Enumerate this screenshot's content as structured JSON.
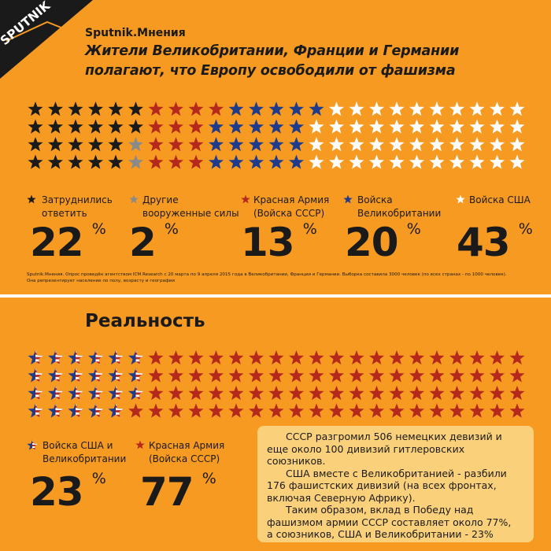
{
  "brand": "Sputnik.Мнения",
  "logo_text": "SPUTNIK",
  "title": "Жители Великобритании, Франции и Германии\nполагают, что Европу освободили от фашизма",
  "survey": {
    "legend": [
      {
        "label": "Затруднились\nответить",
        "value": "22",
        "unit": "%",
        "color": "#1a1a1a"
      },
      {
        "label": "Другие\nвооруженные силы",
        "value": "2",
        "unit": "%",
        "color": "#8a8a8a"
      },
      {
        "label": "Красная Армия\n(Войска СССР)",
        "value": "13",
        "unit": "%",
        "color": "#b5291d"
      },
      {
        "label": "Войска\nВеликобритании",
        "value": "20",
        "unit": "%",
        "color": "#1f3b8c"
      },
      {
        "label": "Войска США",
        "value": "43",
        "unit": "%",
        "color": "#ffffff"
      }
    ],
    "footnote": "Sputnik.Мнения. Опрос проведён агентством ICM Research с 20 марта по 9 апреля 2015 года в Великобритании, Франции и Германии. Выборка составила 3000 человек (по всех странах - по 1000 человек).\nОна репрезентирует население по полу, возрасту и географии"
  },
  "reality": {
    "title": "Реальность",
    "legend": [
      {
        "label": "Войска США  и\nВеликобритании",
        "value": "23",
        "unit": "%"
      },
      {
        "label": "Красная Армия\n(Войска СССР)",
        "value": "77",
        "unit": "%"
      }
    ],
    "text": [
      "СССР разгромил 506 немецких девизий и еще около 100 дивизий гитлеровских союзников.",
      "США вместе с Великобританией - разбили 176 фашистских дивизий (на всех фронтах, включая Северную Африку).",
      "Таким образом, вклад в Победу над фашизмом армии СССР составляет около 77%,",
      "а союзников, США и Великобритании - 23%"
    ]
  },
  "chart_data": [
    {
      "type": "pictograph",
      "title": "Жители Великобритании, Франции и Германии полагают, что Европу освободили от фашизма",
      "categories": [
        "Затруднились ответить",
        "Другие вооруженные силы",
        "Красная Армия (Войска СССР)",
        "Войска Великобритании",
        "Войска США"
      ],
      "values": [
        22,
        2,
        13,
        20,
        43
      ],
      "unit": "%",
      "colors": [
        "#1a1a1a",
        "#8a8a8a",
        "#b5291d",
        "#1f3b8c",
        "#ffffff"
      ]
    },
    {
      "type": "pictograph",
      "title": "Реальность",
      "categories": [
        "Войска США  и Великобритании",
        "Красная Армия (Войска СССР)"
      ],
      "values": [
        23,
        77
      ],
      "unit": "%",
      "colors": [
        "usflag",
        "#b5291d"
      ]
    }
  ]
}
